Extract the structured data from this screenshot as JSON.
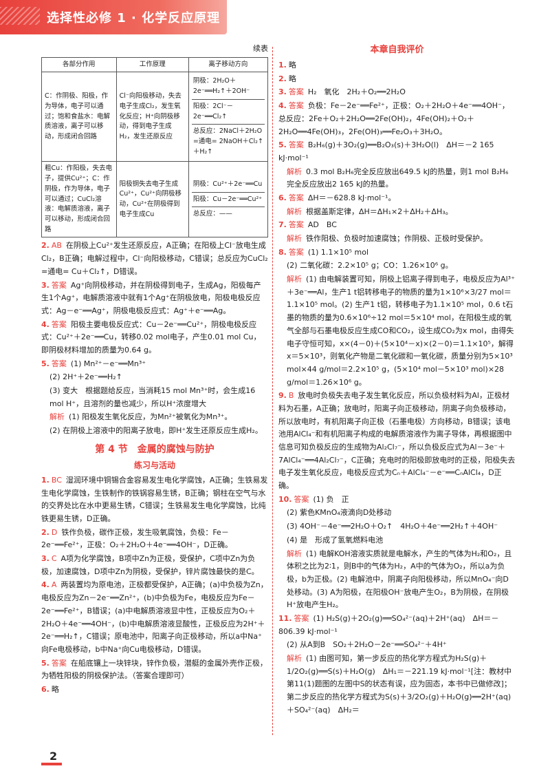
{
  "header": {
    "title": "选择性必修 1 · 化学反应原理"
  },
  "left": {
    "continued": "续表",
    "table": {
      "headers": [
        "各部分作用",
        "工作原理",
        "离子移动方向"
      ],
      "rows": [
        {
          "role": "C：作阴极、阳极，作为导体，电子可以通过；饱和食盐水：电解质溶液，离子可以移动，形成闭合回路",
          "principle": "Cl⁻向阳极移动，失去电子生成Cl₂，发生氧化反应；H⁺向阴极移动，得到电子生成H₂，发生还原反应",
          "ion": [
            "阴极：2H₂O＋2e⁻══H₂↑＋2OH⁻",
            "阳极：2Cl⁻－2e⁻══Cl₂↑",
            "总反应：2NaCl＋2H₂O =通电= 2NaOH＋Cl₂↑＋H₂↑"
          ]
        },
        {
          "role": "粗Cu：作阳极，失去电子，提供Cu²⁺；C：作阴极，作为导体，电子可以通过；CuCl₂溶液：电解质溶液，离子可以移动，形成闭合回路",
          "principle": "阳极铜失去电子生成Cu²⁺，Cu²⁺向阴极移动，Cu²⁺在阴极得到电子生成Cu",
          "ion": [
            "阴极：Cu²⁺＋2e⁻══Cu",
            "阳极：Cu－2e⁻══Cu²⁺",
            "总反应：——"
          ]
        }
      ]
    },
    "items_a": [
      {
        "num": "2.",
        "tag": "AB",
        "text": "在阴极上Cu²⁺发生还原反应，A正确；在阳极上Cl⁻放电生成Cl₂，B正确；电解过程中，Cl⁻向阳极移动，C错误；总反应为CuCl₂ =通电= Cu＋Cl₂↑，D错误。"
      },
      {
        "num": "3.",
        "tag": "答案",
        "text": "Ag⁺向阴极移动，并在阴极得到电子，生成Ag，阳极每产生1个Ag⁺，电解质溶液中就有1个Ag⁺在阴极放电，阳极电极反应式：Ag－e⁻══Ag⁺，阴极电极反应式：Ag⁺＋e⁻══Ag。"
      },
      {
        "num": "4.",
        "tag": "答案",
        "text": "阳极主要电极反应式：Cu－2e⁻══Cu²⁺，阴极电极反应式：Cu²⁺＋2e⁻══Cu，转移0.02 mol电子，产生0.01 mol Cu，即阴极材料增加的质量为0.64 g。"
      },
      {
        "num": "5.",
        "tag": "答案",
        "text": "(1) Mn²⁺－e⁻══Mn³⁺"
      }
    ],
    "item5_lines": [
      "(2) 2H⁺＋2e⁻══H₂↑",
      "(3) 变大　根据题给反应，当消耗15 mol Mn³⁺时，会生成16 mol H⁺，且溶剂的量也减少，所以H⁺浓度增大",
      "(1) 阳极发生氧化反应，为Mn²⁺被氧化为Mn³⁺。",
      "(2) 在阴极上溶液中的阳离子放电，即H⁺发生还原反应生成H₂。"
    ],
    "jiexi": "解析",
    "section4_title": "第 4 节　金属的腐蚀与防护",
    "section4_sub": "练习与活动",
    "items_b": [
      {
        "num": "1.",
        "tag": "BC",
        "text": "湿润环境中铜锡合金容易发生电化学腐蚀，A正确；生铁易发生电化学腐蚀，生铁制作的铁锅容易生锈，B正确；钢柱在空气与水的交界处比在水中更易生锈，C错误；生铁易发生电化学腐蚀，比纯铁更易生锈，D正确。"
      },
      {
        "num": "2.",
        "tag": "D",
        "text": "铁作负极，碳作正极，发生吸氧腐蚀，负极：Fe－2e⁻══Fe²⁺，正极：O₂＋2H₂O＋4e⁻══4OH⁻，D正确。"
      },
      {
        "num": "3.",
        "tag": "C",
        "text": "A项为化学腐蚀，B项中Zn为正极，受保护，C项中Zn为负极，加速腐蚀，D项中Zn为阴极，受保护，锌片腐蚀最快的是C。"
      },
      {
        "num": "4.",
        "tag": "A",
        "text": "两装置均为原电池，正极都受保护，A正确；(a)中负极为Zn，电极反应为Zn－2e⁻══Zn²⁺，(b)中负极为Fe，电极反应为Fe－2e⁻══Fe²⁺，B错误；(a)中电解质溶液显中性，正极反应为O₂＋2H₂O＋4e⁻══4OH⁻，(b)中电解质溶液显酸性，正极反应为2H⁺＋2e⁻══H₂↑，C错误；原电池中，阳离子向正极移动，所以a中Na⁺向Fe电极移动，b中Na⁺向Cu电极移动，D错误。"
      },
      {
        "num": "5.",
        "tag": "答案",
        "text": "在船底镶上一块锌块，锌作负极，潜艇的金属外壳作正极，为牺牲阳极的阴极保护法。（答案合理即可）"
      },
      {
        "num": "6.",
        "tag": "",
        "text": "略"
      }
    ]
  },
  "right": {
    "title": "本章自我评价",
    "items": [
      {
        "num": "1.",
        "tag": "",
        "text": "略"
      },
      {
        "num": "2.",
        "tag": "",
        "text": "略"
      },
      {
        "num": "3.",
        "tag": "答案",
        "text": "H₂　氧化　2H₂＋O₂══2H₂O"
      },
      {
        "num": "4.",
        "tag": "答案",
        "text": "负极：Fe－2e⁻══Fe²⁺，正极：O₂＋2H₂O＋4e⁻══4OH⁻，总反应：2Fe＋O₂＋2H₂O══2Fe(OH)₂，4Fe(OH)₂＋O₂＋2H₂O══4Fe(OH)₃，2Fe(OH)₃══Fe₂O₃＋3H₂O。"
      },
      {
        "num": "5.",
        "tag": "答案",
        "text": "B₂H₆(g)＋3O₂(g)══B₂O₃(s)＋3H₂O(l)　ΔH＝－2 165 kJ·mol⁻¹"
      },
      {
        "num": "",
        "tag": "解析",
        "text": "0.3 mol B₂H₆完全反应放出649.5 kJ的热量，则1 mol B₂H₆完全反应放出2 165 kJ的热量。"
      },
      {
        "num": "6.",
        "tag": "答案",
        "text": "ΔH＝－628.8 kJ·mol⁻¹。"
      },
      {
        "num": "",
        "tag": "解析",
        "text": "根据盖斯定律，ΔH＝ΔH₁×2＋ΔH₂＋ΔH₃。"
      },
      {
        "num": "7.",
        "tag": "答案",
        "text": "AD　BC"
      },
      {
        "num": "",
        "tag": "解析",
        "text": "铁作阳极、负极时加速腐蚀；作阴极、正极时受保护。"
      },
      {
        "num": "8.",
        "tag": "答案",
        "text": "(1) 1.1×10⁵ mol"
      },
      {
        "num": "",
        "tag": "",
        "text": "(2) 二氧化碳：2.2×10⁵ g；CO：1.26×10⁶ g。"
      },
      {
        "num": "",
        "tag": "解析",
        "text": "(1) 由电解装置可知，阴极上铝离子得到电子，电极反应为Al³⁺＋3e⁻══Al，生产1 t铝转移电子的物质的量为1×10⁶×3/27 mol＝1.1×10⁵ mol。(2) 生产1 t铝，转移电子为1.1×10⁵ mol，0.6 t石墨的物质的量为0.6×10⁶÷12 mol＝5×10⁴ mol，在阳极生成的氧气全部与石墨电极反应生成CO和CO₂，设生成CO₂为x mol，由得失电子守恒可知，x×(4－0)＋(5×10⁴－x)×(2－0)＝1.1×10⁵，解得x＝5×10³，则氧化产物是二氧化碳和一氧化碳，质量分别为5×10³ mol×44 g/mol＝2.2×10⁵ g，(5×10⁴ mol－5×10³ mol)×28 g/mol＝1.26×10⁶ g。"
      },
      {
        "num": "9.",
        "tag": "B",
        "text": "放电时负极失去电子发生氧化反应，所以负极材料为Al，正极材料为石墨，A正确；放电时，阳离子向正极移动，阴离子向负极移动，所以放电时，有机阳离子向正极（石墨电极）方向移动，B错误；该电池用AlCl₄⁻和有机阳离子构成的电解质溶液作为离子导体，再根据图中信息可知负极反应的生成物为Al₂Cl₇⁻，所以负极反应式为Al－3e⁻＋7AlCl₄⁻══4Al₂Cl₇⁻，C正确；充电时的阳极即放电时的正极，阳极失去电子发生氧化反应，电极反应式为Cₙ＋AlCl₄⁻－e⁻══CₙAlCl₄，D正确。"
      },
      {
        "num": "10.",
        "tag": "答案",
        "text": "(1) 负　正"
      },
      {
        "num": "",
        "tag": "",
        "text": "(2) 紫色KMnO₄液滴向D处移动"
      },
      {
        "num": "",
        "tag": "",
        "text": "(3) 4OH⁻－4e⁻══2H₂O＋O₂↑　4H₂O＋4e⁻══2H₂↑＋4OH⁻"
      },
      {
        "num": "",
        "tag": "",
        "text": "(4) 是　形成了氢氧燃料电池"
      },
      {
        "num": "",
        "tag": "解析",
        "text": "(1) 电解KOH溶液实质就是电解水，产生的气体为H₂和O₂，且体积之比为2∶1，则B中的气体为H₂，A中的气体为O₂，所以a为负极，b为正极。(2) 电解池中，阴离子向阳极移动，所以MnO₄⁻向D处移动。(3) A为阳极，在阳极OH⁻放电产生O₂，B为阴极，在阴极H⁺放电产生H₂。"
      },
      {
        "num": "11.",
        "tag": "答案",
        "text": "(1) H₂S(g)＋2O₂(g)══SO₄²⁻(aq)＋2H⁺(aq)　ΔH＝－806.39 kJ·mol⁻¹"
      },
      {
        "num": "",
        "tag": "",
        "text": "(2) 从A到B　SO₂＋2H₂O－2e⁻══SO₄²⁻＋4H⁺"
      },
      {
        "num": "",
        "tag": "解析",
        "text": "(1) 由图可知，第一步反应的热化学方程式为H₂S(g)＋1/2O₂(g)══S(s)＋H₂O(g)　ΔH₁＝－221.19 kJ·mol⁻¹[注：教材中第11(1)题图的左图中S的状态有误，应为固态，本书中已做修改]；第二步反应的热化学方程式为S(s)＋3/2O₂(g)＋H₂O(g)══2H⁺(aq)＋SO₄²⁻(aq)　ΔH₂＝"
      }
    ]
  },
  "page_number": "2"
}
